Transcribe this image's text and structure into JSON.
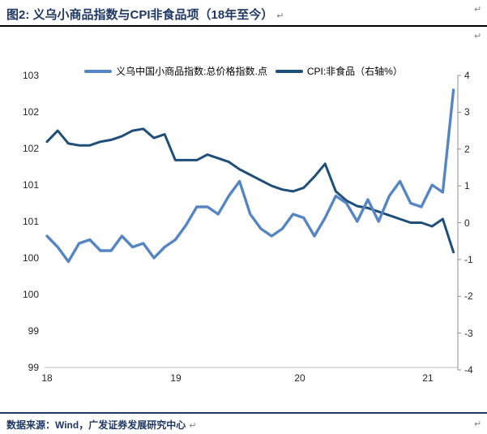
{
  "header": {
    "title": "图2:  义乌小商品指数与CPI非食品项（18年至今）"
  },
  "footer": {
    "source_label": "数据来源：Wind，广发证券发展研究中心"
  },
  "marks": {
    "return_mark": "↵"
  },
  "colors": {
    "accent_navy": "#1F3864",
    "series_light_blue": "#5586C3",
    "series_dark_navy": "#1F4E79",
    "axis_line": "#8C8C8C",
    "x_axis_line": "#BFBFBF"
  },
  "chart_data": {
    "type": "line",
    "title": "义乌小商品指数与CPI非食品项（18年至今）",
    "legend_position": "top",
    "grid": false,
    "x_tick_labels": [
      "18",
      "19",
      "20",
      "21"
    ],
    "months": [
      "2018-01",
      "2018-02",
      "2018-03",
      "2018-04",
      "2018-05",
      "2018-06",
      "2018-07",
      "2018-08",
      "2018-09",
      "2018-10",
      "2018-11",
      "2018-12",
      "2019-01",
      "2019-02",
      "2019-03",
      "2019-04",
      "2019-05",
      "2019-06",
      "2019-07",
      "2019-08",
      "2019-09",
      "2019-10",
      "2019-11",
      "2019-12",
      "2020-01",
      "2020-02",
      "2020-03",
      "2020-04",
      "2020-05",
      "2020-06",
      "2020-07",
      "2020-08",
      "2020-09",
      "2020-10",
      "2020-11",
      "2020-12",
      "2021-01",
      "2021-02",
      "2021-03"
    ],
    "left_axis": {
      "min": 99,
      "max": 103,
      "step": 0.5,
      "labels": [
        "103",
        "102",
        "102",
        "101",
        "101",
        "100",
        "100",
        "99",
        "99"
      ]
    },
    "right_axis": {
      "min": -4,
      "max": 4,
      "step": 1,
      "labels": [
        "4",
        "3",
        "2",
        "1",
        "0",
        "-1",
        "-2",
        "-3",
        "-4"
      ]
    },
    "series": [
      {
        "name": "义乌中国小商品指数:总价格指数.点",
        "axis": "left",
        "color": "#5586C3",
        "values": [
          100.8,
          100.65,
          100.45,
          100.7,
          100.75,
          100.6,
          100.6,
          100.8,
          100.65,
          100.7,
          100.5,
          100.65,
          100.75,
          100.95,
          101.2,
          101.2,
          101.1,
          101.35,
          101.55,
          101.1,
          100.9,
          100.8,
          100.9,
          101.1,
          101.05,
          100.8,
          101.05,
          101.35,
          101.25,
          101.0,
          101.3,
          101.0,
          101.35,
          101.55,
          101.25,
          101.2,
          101.5,
          101.4,
          102.8
        ]
      },
      {
        "name": "CPI:非食品（右轴%）",
        "axis": "right",
        "color": "#1F4E79",
        "values": [
          2.2,
          2.5,
          2.15,
          2.1,
          2.1,
          2.2,
          2.25,
          2.35,
          2.5,
          2.55,
          2.3,
          2.4,
          1.7,
          1.7,
          1.7,
          1.85,
          1.75,
          1.65,
          1.45,
          1.3,
          1.15,
          1.0,
          0.9,
          0.85,
          0.95,
          1.25,
          1.6,
          0.85,
          0.6,
          0.45,
          0.4,
          0.3,
          0.2,
          0.1,
          0.0,
          0.0,
          -0.1,
          0.1,
          -0.8
        ]
      }
    ]
  }
}
